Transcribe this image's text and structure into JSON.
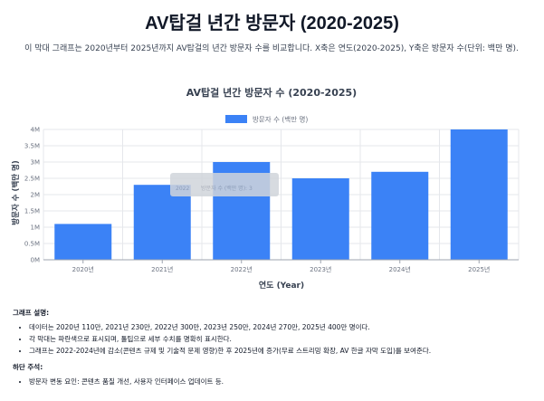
{
  "page": {
    "title": "AV탑걸 년간 방문자 (2020-2025)",
    "description": "이 막대 그래프는 2020년부터 2025년까지 AV탑걸의 년간 방문자 수를 비교합니다. X축은 연도(2020-2025), Y축은 방문자 수(단위: 백만 명)."
  },
  "chart_data": {
    "type": "bar",
    "title": "AV탑걸 년간 방문자 수 (2020-2025)",
    "xlabel": "연도 (Year)",
    "ylabel": "방문자 수 (백만 명)",
    "categories": [
      "2020년",
      "2021년",
      "2022년",
      "2023년",
      "2024년",
      "2025년"
    ],
    "series": [
      {
        "name": "방문자 수 (백만 명)",
        "values": [
          1.1,
          2.3,
          3.0,
          2.5,
          2.7,
          4.0
        ]
      }
    ],
    "ylim": [
      0,
      4
    ],
    "y_ticks": [
      "0M",
      "0.5M",
      "1M",
      "1.5M",
      "2M",
      "2.5M",
      "3M",
      "3.5M",
      "4M"
    ],
    "legend": "top-center",
    "grid": true,
    "color": "#3b82f6",
    "tooltip": {
      "year_value": "2022",
      "series_value": "방문자 수 (백만 명): 3"
    }
  },
  "notes": {
    "heading1": "그래프 설명:",
    "items1": [
      "데이터는 2020년 110만, 2021년 230만, 2022년 300만, 2023년 250만, 2024년 270만, 2025년 400만 명이다.",
      "각 막대는 파란색으로 표시되며, 툴팁으로 세부 수치를 명확히 표시한다.",
      "그래프는 2022-2024년에 감소(콘텐츠 규제 및 기술적 문제 영향)한 후 2025년에 증가(무료 스트리밍 확장, AV 한글 자막 도입)를 보여준다."
    ],
    "heading2": "하단 주석:",
    "items2": [
      "방문자 변동 요인: 콘텐츠 품질 개선, 사용자 인터페이스 업데이트 등."
    ]
  }
}
